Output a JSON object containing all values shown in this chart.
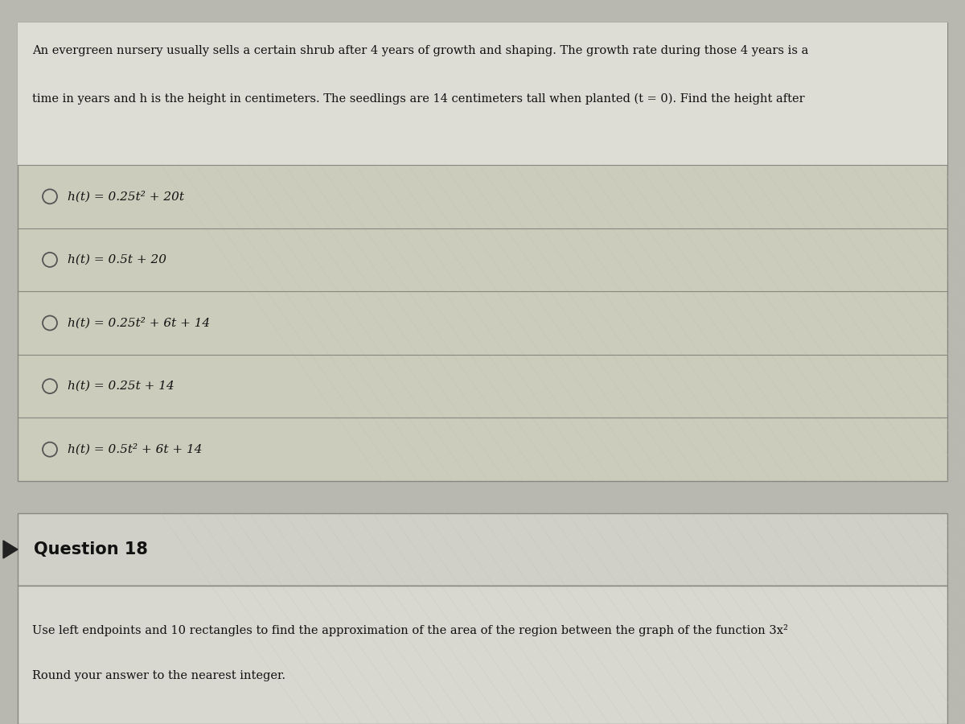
{
  "bg_color": "#b8b8b0",
  "panel_color_light": "#ddddd5",
  "panel_color_answers": "#ccccbc",
  "panel_color_q18_header": "#d0d0c8",
  "panel_color_q18_content": "#d8d8d0",
  "border_color": "#888880",
  "text_color": "#111111",
  "title_text1": "An evergreen nursery usually sells a certain shrub after 4 years of growth and shaping. The growth rate during those 4 years is a",
  "title_text2": "time in years and h is the height in centimeters. The seedlings are 14 centimeters tall when planted (t = 0). Find the height after",
  "options": [
    "h(t) = 0.25t² + 20t",
    "h(t) = 0.5t + 20",
    "h(t) = 0.25t² + 6t + 14",
    "h(t) = 0.25t + 14",
    "h(t) = 0.5t² + 6t + 14"
  ],
  "q18_label": "Question 18",
  "q18_text1": "Use left endpoints and 10 rectangles to find the approximation of the area of the region between the graph of the function 3x²",
  "q18_text2": "Round your answer to the nearest integer.",
  "fig_width": 12.0,
  "fig_height": 9.0,
  "dpi": 100
}
